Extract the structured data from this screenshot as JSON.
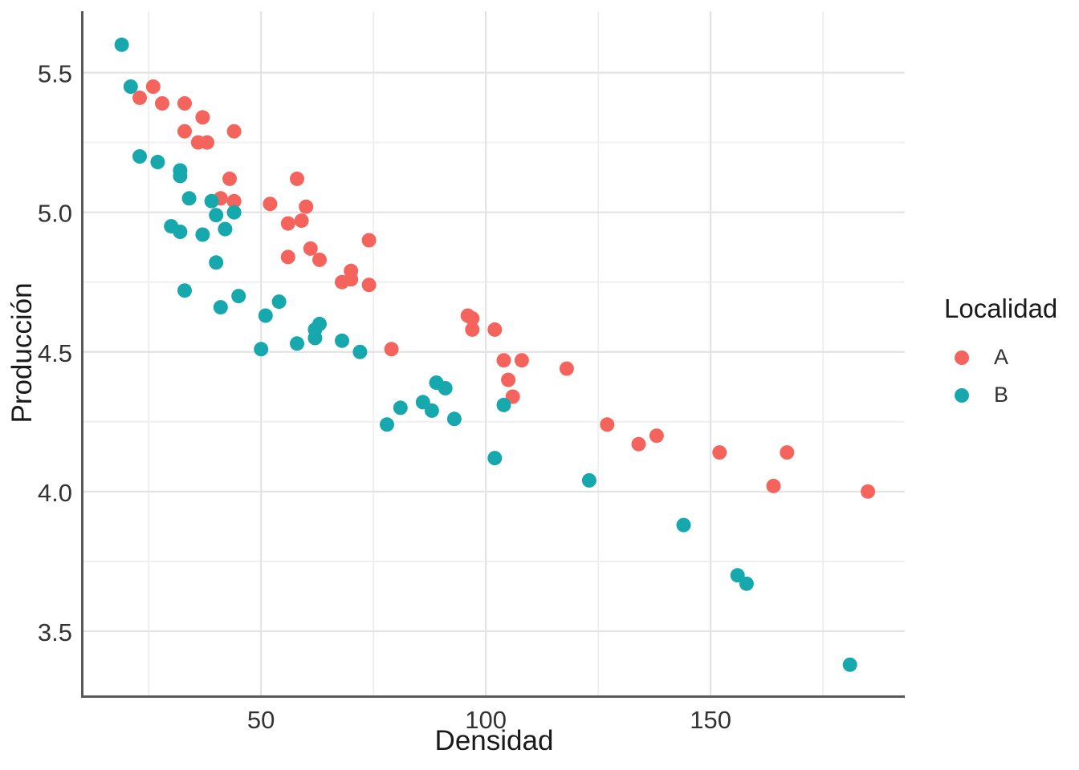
{
  "chart_data": {
    "type": "scatter",
    "title": "",
    "xlabel": "Densidad",
    "ylabel": "Producción",
    "xlim": [
      10.5,
      193.2
    ],
    "ylim": [
      3.27,
      5.72
    ],
    "grid": true,
    "x_major_ticks": [
      {
        "v": 50,
        "label": "50"
      },
      {
        "v": 100,
        "label": "100"
      },
      {
        "v": 150,
        "label": "150"
      }
    ],
    "x_minor_ticks": [
      25,
      75,
      125,
      175
    ],
    "y_major_ticks": [
      {
        "v": 3.5,
        "label": "3.5"
      },
      {
        "v": 4.0,
        "label": "4.0"
      },
      {
        "v": 4.5,
        "label": "4.5"
      },
      {
        "v": 5.0,
        "label": "5.0"
      },
      {
        "v": 5.5,
        "label": "5.5"
      }
    ],
    "y_minor_ticks": [
      3.75,
      4.25,
      4.75,
      5.25
    ],
    "legend": {
      "title": "Localidad",
      "position": "right"
    },
    "colors": {
      "axis_line": "#595959",
      "tick_text": "#333333",
      "title_text": "#1a1a1a",
      "grid_major": "#e3e3e3",
      "grid_minor": "#efefef"
    },
    "series": [
      {
        "name": "A",
        "color": "#F4645C",
        "points": [
          [
            23,
            5.41
          ],
          [
            26,
            5.45
          ],
          [
            28,
            5.39
          ],
          [
            33,
            5.39
          ],
          [
            33,
            5.29
          ],
          [
            36,
            5.25
          ],
          [
            37,
            5.34
          ],
          [
            38,
            5.25
          ],
          [
            41,
            5.05
          ],
          [
            43,
            5.12
          ],
          [
            44,
            5.29
          ],
          [
            44,
            5.04
          ],
          [
            52,
            5.03
          ],
          [
            56,
            4.96
          ],
          [
            56,
            4.84
          ],
          [
            58,
            5.12
          ],
          [
            59,
            4.97
          ],
          [
            60,
            5.02
          ],
          [
            61,
            4.87
          ],
          [
            63,
            4.83
          ],
          [
            68,
            4.75
          ],
          [
            70,
            4.79
          ],
          [
            70,
            4.76
          ],
          [
            74,
            4.9
          ],
          [
            74,
            4.74
          ],
          [
            79,
            4.51
          ],
          [
            96,
            4.63
          ],
          [
            97,
            4.62
          ],
          [
            97,
            4.58
          ],
          [
            102,
            4.58
          ],
          [
            104,
            4.47
          ],
          [
            105,
            4.4
          ],
          [
            106,
            4.34
          ],
          [
            108,
            4.47
          ],
          [
            118,
            4.44
          ],
          [
            127,
            4.24
          ],
          [
            134,
            4.17
          ],
          [
            138,
            4.2
          ],
          [
            152,
            4.14
          ],
          [
            164,
            4.02
          ],
          [
            167,
            4.14
          ],
          [
            185,
            4.0
          ]
        ]
      },
      {
        "name": "B",
        "color": "#16A8AC",
        "points": [
          [
            19,
            5.6
          ],
          [
            21,
            5.45
          ],
          [
            23,
            5.2
          ],
          [
            27,
            5.18
          ],
          [
            30,
            4.95
          ],
          [
            32,
            5.15
          ],
          [
            32,
            5.13
          ],
          [
            32,
            4.93
          ],
          [
            33,
            4.72
          ],
          [
            34,
            5.05
          ],
          [
            37,
            4.92
          ],
          [
            39,
            5.04
          ],
          [
            40,
            4.99
          ],
          [
            40,
            4.82
          ],
          [
            41,
            4.66
          ],
          [
            42,
            4.94
          ],
          [
            44,
            5.0
          ],
          [
            45,
            4.7
          ],
          [
            50,
            4.51
          ],
          [
            51,
            4.63
          ],
          [
            54,
            4.68
          ],
          [
            58,
            4.53
          ],
          [
            62,
            4.58
          ],
          [
            62,
            4.55
          ],
          [
            63,
            4.6
          ],
          [
            68,
            4.54
          ],
          [
            72,
            4.5
          ],
          [
            78,
            4.24
          ],
          [
            81,
            4.3
          ],
          [
            86,
            4.32
          ],
          [
            88,
            4.29
          ],
          [
            89,
            4.39
          ],
          [
            91,
            4.37
          ],
          [
            93,
            4.26
          ],
          [
            102,
            4.12
          ],
          [
            104,
            4.31
          ],
          [
            123,
            4.04
          ],
          [
            144,
            3.88
          ],
          [
            156,
            3.7
          ],
          [
            158,
            3.67
          ],
          [
            181,
            3.38
          ]
        ]
      }
    ]
  }
}
